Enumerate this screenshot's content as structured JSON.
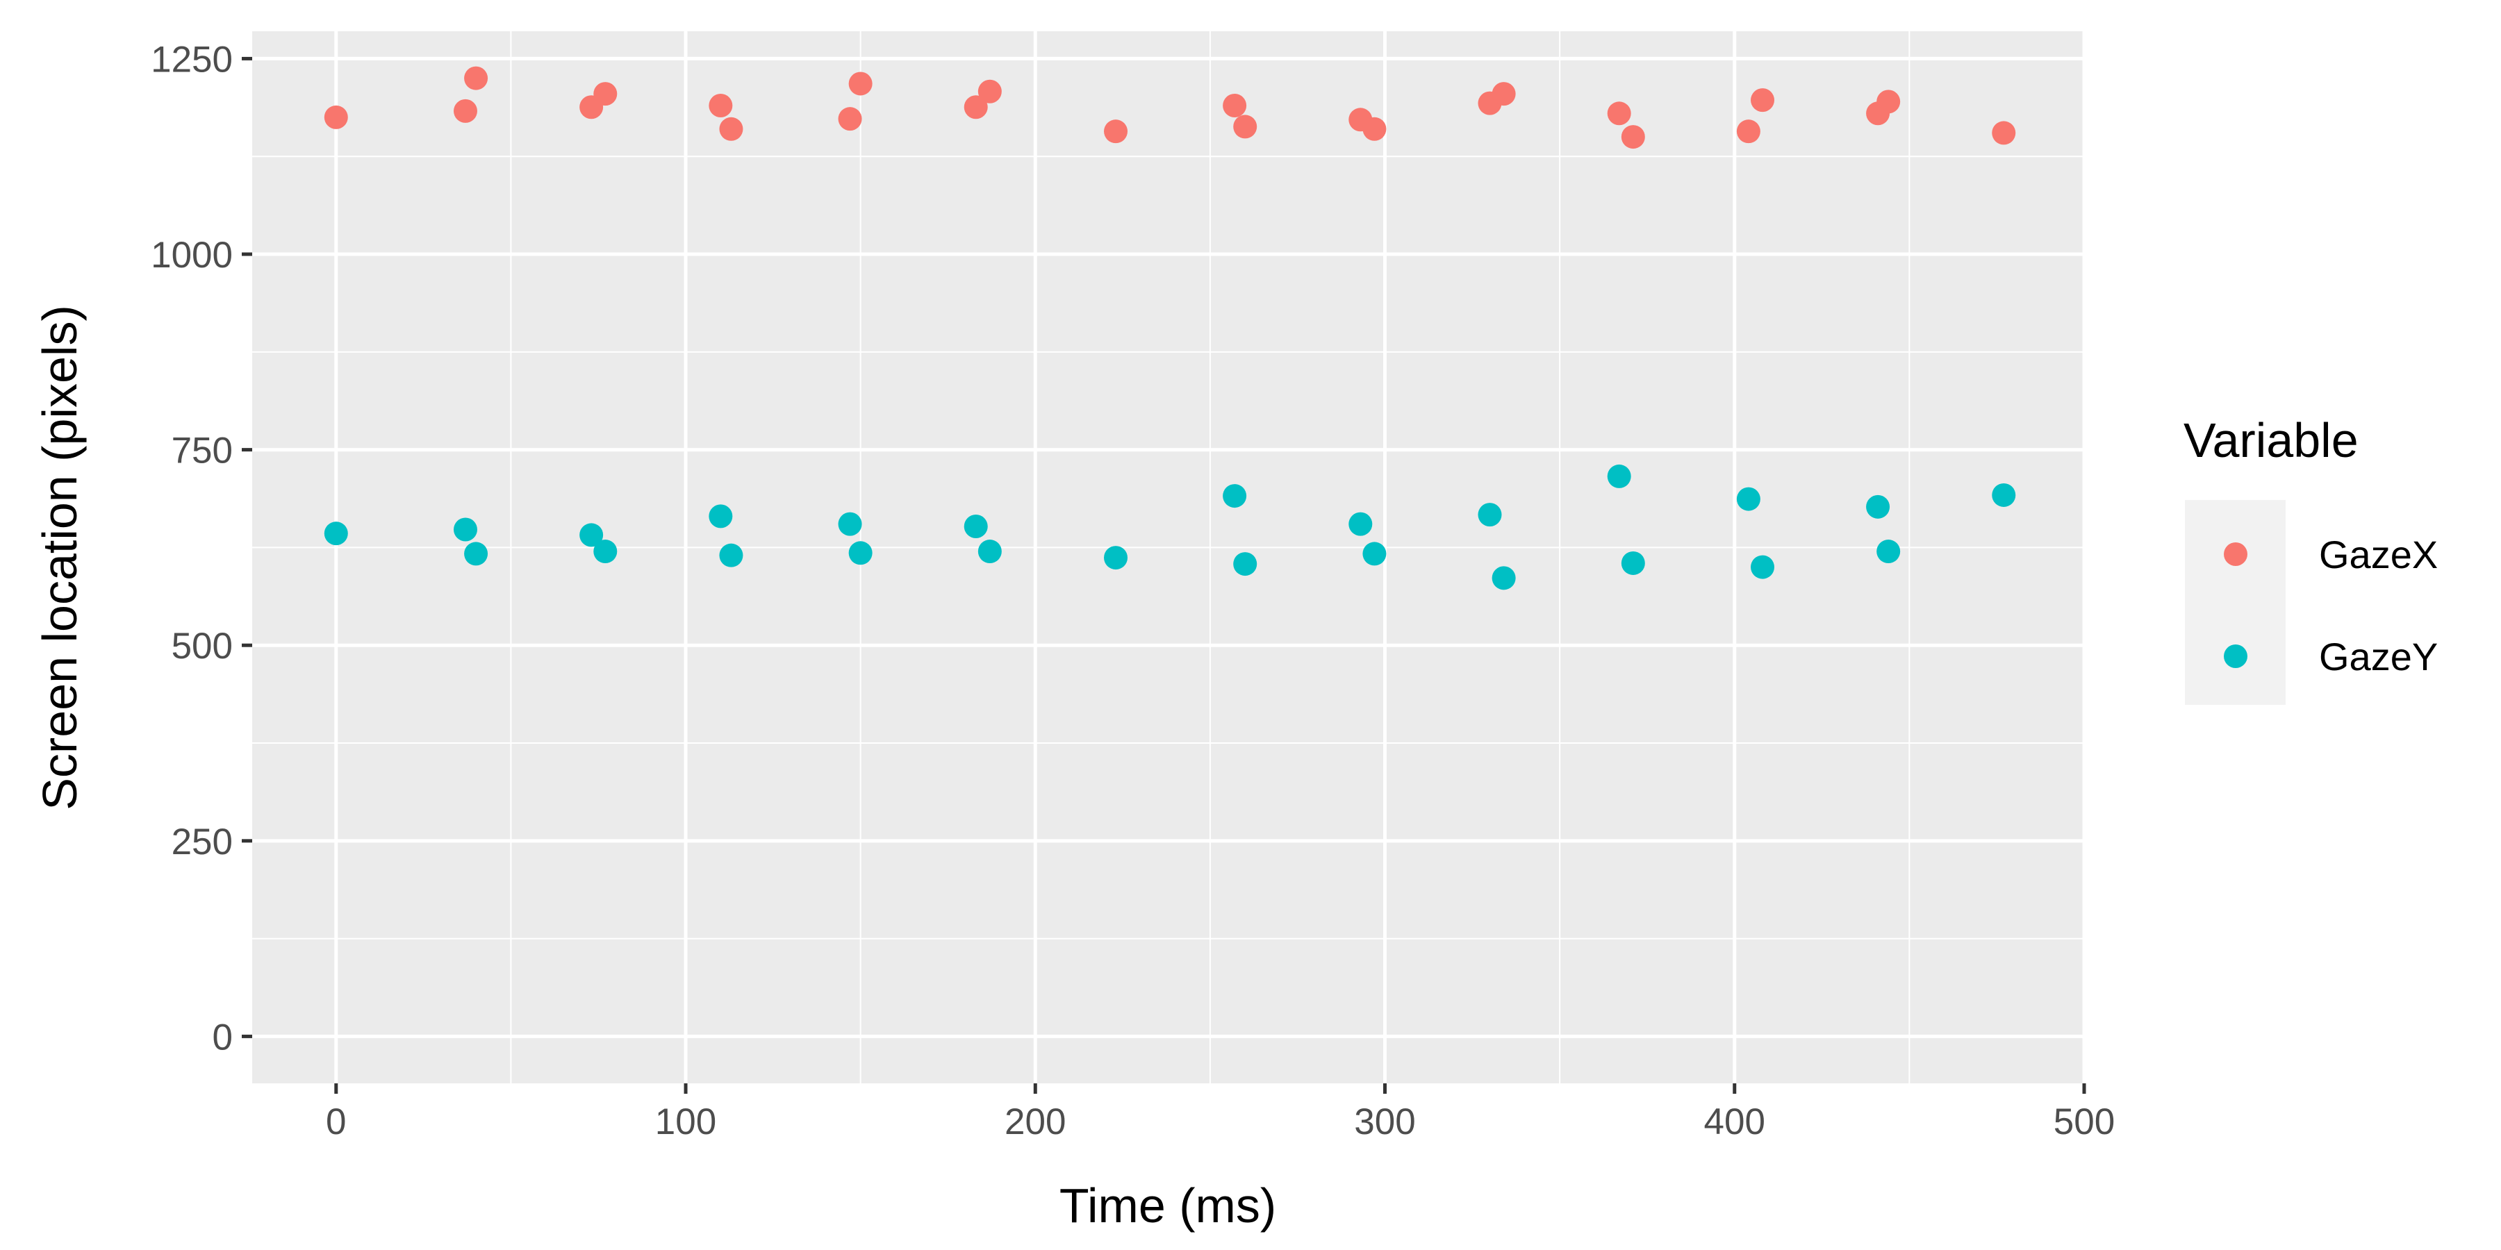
{
  "chart_data": {
    "type": "scatter",
    "title": "",
    "xlabel": "Time (ms)",
    "ylabel": "Screen location (pixels)",
    "xlim": [
      -24,
      500
    ],
    "ylim": [
      -60,
      1285
    ],
    "x_ticks": [
      0,
      100,
      200,
      300,
      400,
      500
    ],
    "y_ticks": [
      0,
      250,
      500,
      750,
      1000,
      1250
    ],
    "grid": true,
    "legend": {
      "title": "Variable",
      "position": "right"
    },
    "series": [
      {
        "name": "GazeX",
        "color": "#F8766D",
        "points": [
          {
            "x": 0,
            "y": 1175
          },
          {
            "x": 37,
            "y": 1183
          },
          {
            "x": 40,
            "y": 1225
          },
          {
            "x": 73,
            "y": 1188
          },
          {
            "x": 77,
            "y": 1205
          },
          {
            "x": 110,
            "y": 1190
          },
          {
            "x": 113,
            "y": 1160
          },
          {
            "x": 147,
            "y": 1173
          },
          {
            "x": 150,
            "y": 1218
          },
          {
            "x": 183,
            "y": 1188
          },
          {
            "x": 187,
            "y": 1208
          },
          {
            "x": 223,
            "y": 1157
          },
          {
            "x": 257,
            "y": 1190
          },
          {
            "x": 260,
            "y": 1163
          },
          {
            "x": 293,
            "y": 1172
          },
          {
            "x": 297,
            "y": 1160
          },
          {
            "x": 330,
            "y": 1193
          },
          {
            "x": 334,
            "y": 1205
          },
          {
            "x": 367,
            "y": 1180
          },
          {
            "x": 371,
            "y": 1150
          },
          {
            "x": 404,
            "y": 1157
          },
          {
            "x": 408,
            "y": 1197
          },
          {
            "x": 441,
            "y": 1180
          },
          {
            "x": 444,
            "y": 1195
          },
          {
            "x": 477,
            "y": 1155
          }
        ]
      },
      {
        "name": "GazeY",
        "color": "#00BFC4",
        "points": [
          {
            "x": 0,
            "y": 643
          },
          {
            "x": 37,
            "y": 648
          },
          {
            "x": 40,
            "y": 617
          },
          {
            "x": 73,
            "y": 641
          },
          {
            "x": 77,
            "y": 620
          },
          {
            "x": 110,
            "y": 665
          },
          {
            "x": 113,
            "y": 615
          },
          {
            "x": 147,
            "y": 655
          },
          {
            "x": 150,
            "y": 618
          },
          {
            "x": 183,
            "y": 652
          },
          {
            "x": 187,
            "y": 620
          },
          {
            "x": 223,
            "y": 612
          },
          {
            "x": 257,
            "y": 691
          },
          {
            "x": 260,
            "y": 604
          },
          {
            "x": 293,
            "y": 655
          },
          {
            "x": 297,
            "y": 617
          },
          {
            "x": 330,
            "y": 667
          },
          {
            "x": 334,
            "y": 586
          },
          {
            "x": 367,
            "y": 716
          },
          {
            "x": 371,
            "y": 605
          },
          {
            "x": 404,
            "y": 687
          },
          {
            "x": 408,
            "y": 600
          },
          {
            "x": 441,
            "y": 677
          },
          {
            "x": 444,
            "y": 620
          },
          {
            "x": 477,
            "y": 692
          }
        ]
      }
    ]
  }
}
